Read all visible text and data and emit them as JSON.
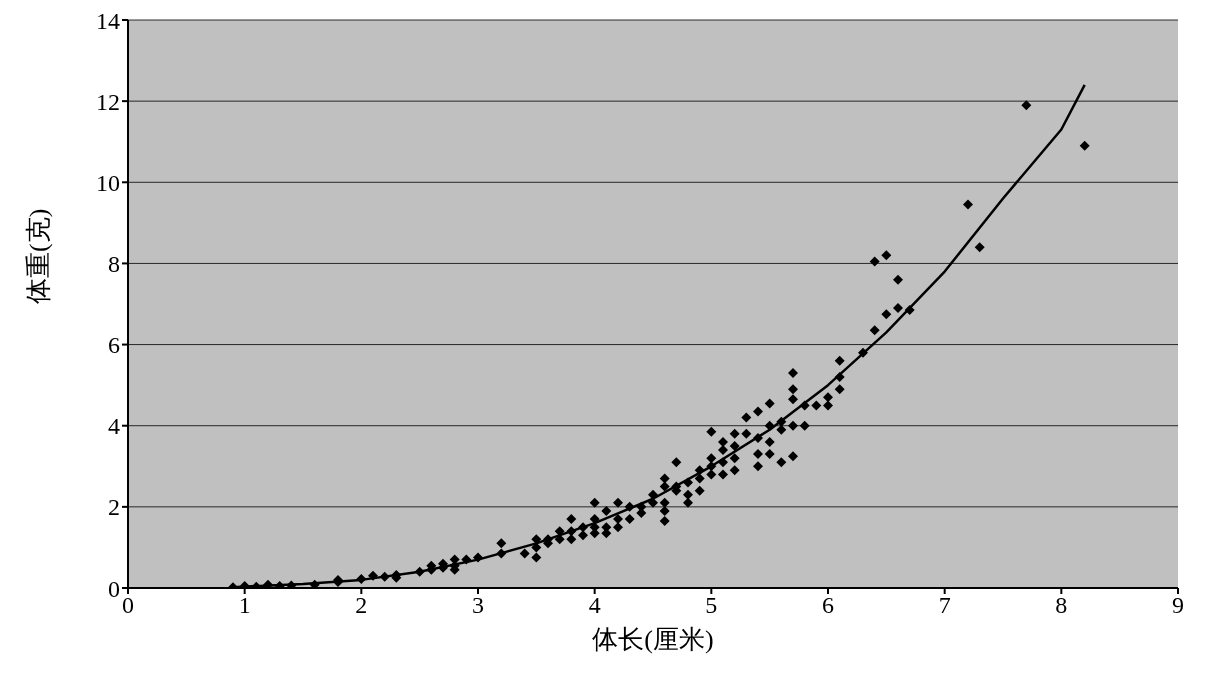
{
  "chart_data": {
    "type": "scatter",
    "xlabel": "体长(厘米)",
    "ylabel": "体重(克)",
    "xlim": [
      0,
      9
    ],
    "xticks": [
      0,
      1,
      2,
      3,
      4,
      5,
      6,
      7,
      8,
      9
    ],
    "ylim": [
      0,
      14
    ],
    "yticks": [
      0,
      2,
      4,
      6,
      8,
      10,
      12,
      14
    ],
    "grid": "y",
    "legend": false,
    "series": [
      {
        "marker": "diamond",
        "color": "#000000",
        "x": [
          0.9,
          1.0,
          1.1,
          1.2,
          1.3,
          1.4,
          1.6,
          1.8,
          1.8,
          2.0,
          2.1,
          2.2,
          2.3,
          2.3,
          2.5,
          2.6,
          2.6,
          2.7,
          2.7,
          2.8,
          2.8,
          2.8,
          2.9,
          3.0,
          3.2,
          3.2,
          3.4,
          3.5,
          3.5,
          3.5,
          3.6,
          3.6,
          3.7,
          3.7,
          3.8,
          3.8,
          3.8,
          3.9,
          3.9,
          4.0,
          4.0,
          4.0,
          4.0,
          4.1,
          4.1,
          4.1,
          4.2,
          4.2,
          4.2,
          4.3,
          4.3,
          4.4,
          4.4,
          4.5,
          4.5,
          4.6,
          4.6,
          4.6,
          4.6,
          4.6,
          4.7,
          4.7,
          4.7,
          4.8,
          4.8,
          4.8,
          4.9,
          4.9,
          4.9,
          5.0,
          5.0,
          5.0,
          5.0,
          5.1,
          5.1,
          5.1,
          5.1,
          5.2,
          5.2,
          5.2,
          5.2,
          5.3,
          5.3,
          5.4,
          5.4,
          5.4,
          5.4,
          5.5,
          5.5,
          5.5,
          5.5,
          5.6,
          5.6,
          5.6,
          5.7,
          5.7,
          5.7,
          5.7,
          5.7,
          5.8,
          5.8,
          5.9,
          6.0,
          6.0,
          6.1,
          6.1,
          6.1,
          6.3,
          6.4,
          6.4,
          6.5,
          6.5,
          6.6,
          6.6,
          6.7,
          7.2,
          7.3,
          7.7,
          8.2
        ],
        "values": [
          0.02,
          0.05,
          0.03,
          0.08,
          0.05,
          0.06,
          0.08,
          0.15,
          0.2,
          0.22,
          0.3,
          0.28,
          0.32,
          0.25,
          0.4,
          0.55,
          0.45,
          0.6,
          0.5,
          0.7,
          0.55,
          0.45,
          0.7,
          0.75,
          1.1,
          0.85,
          0.85,
          1.2,
          1.0,
          0.75,
          1.2,
          1.1,
          1.4,
          1.2,
          1.7,
          1.4,
          1.2,
          1.5,
          1.3,
          2.1,
          1.7,
          1.5,
          1.35,
          1.9,
          1.5,
          1.35,
          2.1,
          1.7,
          1.5,
          2.0,
          1.7,
          2.0,
          1.85,
          2.3,
          2.1,
          2.7,
          2.5,
          2.1,
          1.9,
          1.65,
          3.1,
          2.5,
          2.4,
          2.6,
          2.3,
          2.1,
          2.9,
          2.7,
          2.4,
          3.85,
          3.2,
          3.0,
          2.8,
          3.6,
          3.4,
          3.1,
          2.8,
          3.8,
          3.5,
          3.2,
          2.9,
          4.2,
          3.8,
          4.35,
          3.7,
          3.3,
          3.0,
          4.55,
          4.0,
          3.6,
          3.3,
          4.1,
          3.9,
          3.1,
          5.3,
          4.9,
          4.65,
          4.0,
          3.25,
          4.5,
          4.0,
          4.5,
          4.7,
          4.5,
          5.6,
          5.2,
          4.9,
          5.8,
          8.05,
          6.35,
          8.2,
          6.75,
          7.6,
          6.9,
          6.85,
          9.45,
          8.4,
          11.9,
          10.9
        ]
      },
      {
        "type": "line",
        "marker": "none",
        "line_style": "solid",
        "color": "#000000",
        "x": [
          0.9,
          1.5,
          2.0,
          2.5,
          3.0,
          3.5,
          4.0,
          4.5,
          5.0,
          5.5,
          6.0,
          6.5,
          7.0,
          7.5,
          8.0,
          8.2
        ],
        "values": [
          0.02,
          0.1,
          0.2,
          0.4,
          0.7,
          1.1,
          1.6,
          2.2,
          3.0,
          3.9,
          5.0,
          6.3,
          7.8,
          9.6,
          11.3,
          12.4
        ]
      }
    ]
  }
}
